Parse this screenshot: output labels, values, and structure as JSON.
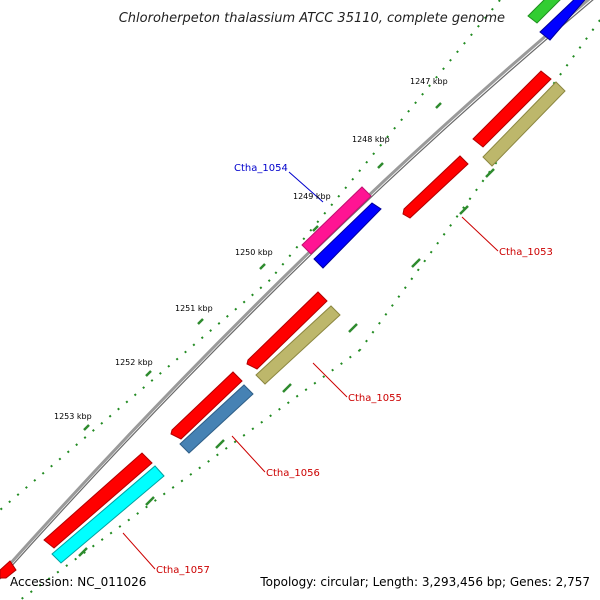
{
  "title": "Chloroherpeton thalassium ATCC 35110, complete genome",
  "footer": {
    "accession": "Accession: NC_011026",
    "summary": "Topology: circular; Length: 3,293,456 bp; Genes: 2,757"
  },
  "ticks": [
    "1247 kbp",
    "1248 kbp",
    "1249 kbp",
    "1250 kbp",
    "1251 kbp",
    "1252 kbp",
    "1253 kbp"
  ],
  "gene_labels": [
    "Ctha_1054",
    "Ctha_1053",
    "Ctha_1055",
    "Ctha_1056",
    "Ctha_1057"
  ],
  "colors": {
    "red": "#ff0000",
    "magenta": "#ff1493",
    "blue": "#0000ff",
    "khaki": "#bdb76b",
    "steelblue": "#4682b4",
    "cyan": "#00ffff",
    "green": "#32cd32",
    "backbone": "#808080",
    "tick_green": "#008000",
    "label_blue": "#0000cc",
    "label_red": "#cc0000"
  }
}
